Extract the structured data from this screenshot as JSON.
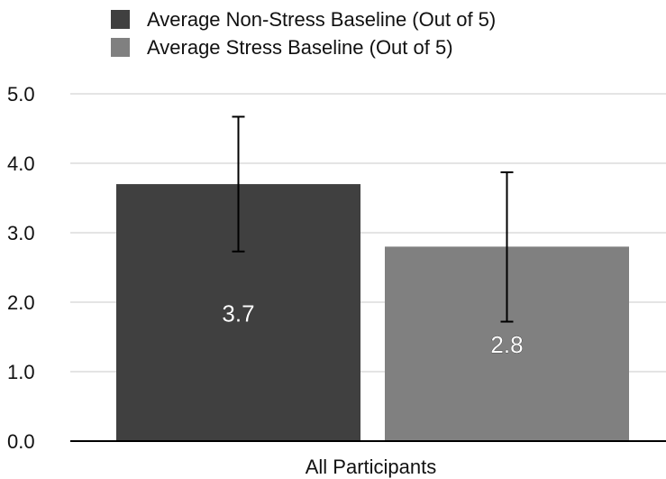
{
  "chart_data": {
    "type": "bar",
    "categories": [
      "All Participants"
    ],
    "series": [
      {
        "name": "Average Non-Stress Baseline (Out of 5)",
        "values": [
          3.7
        ],
        "error_low": [
          2.73
        ],
        "error_high": [
          4.67
        ],
        "color": "#404040",
        "value_label": "3.7"
      },
      {
        "name": "Average Stress Baseline (Out of 5)",
        "values": [
          2.8
        ],
        "error_low": [
          1.72
        ],
        "error_high": [
          3.87
        ],
        "color": "#808080",
        "value_label": "2.8"
      }
    ],
    "ylim": [
      0,
      5
    ],
    "yticks": [
      0,
      1,
      2,
      3,
      4,
      5
    ],
    "ytick_labels": [
      "0.0",
      "1.0",
      "2.0",
      "3.0",
      "4.0",
      "5.0"
    ],
    "xlabel": "",
    "ylabel": "",
    "title": "",
    "grid": true,
    "legend_position": "top"
  }
}
